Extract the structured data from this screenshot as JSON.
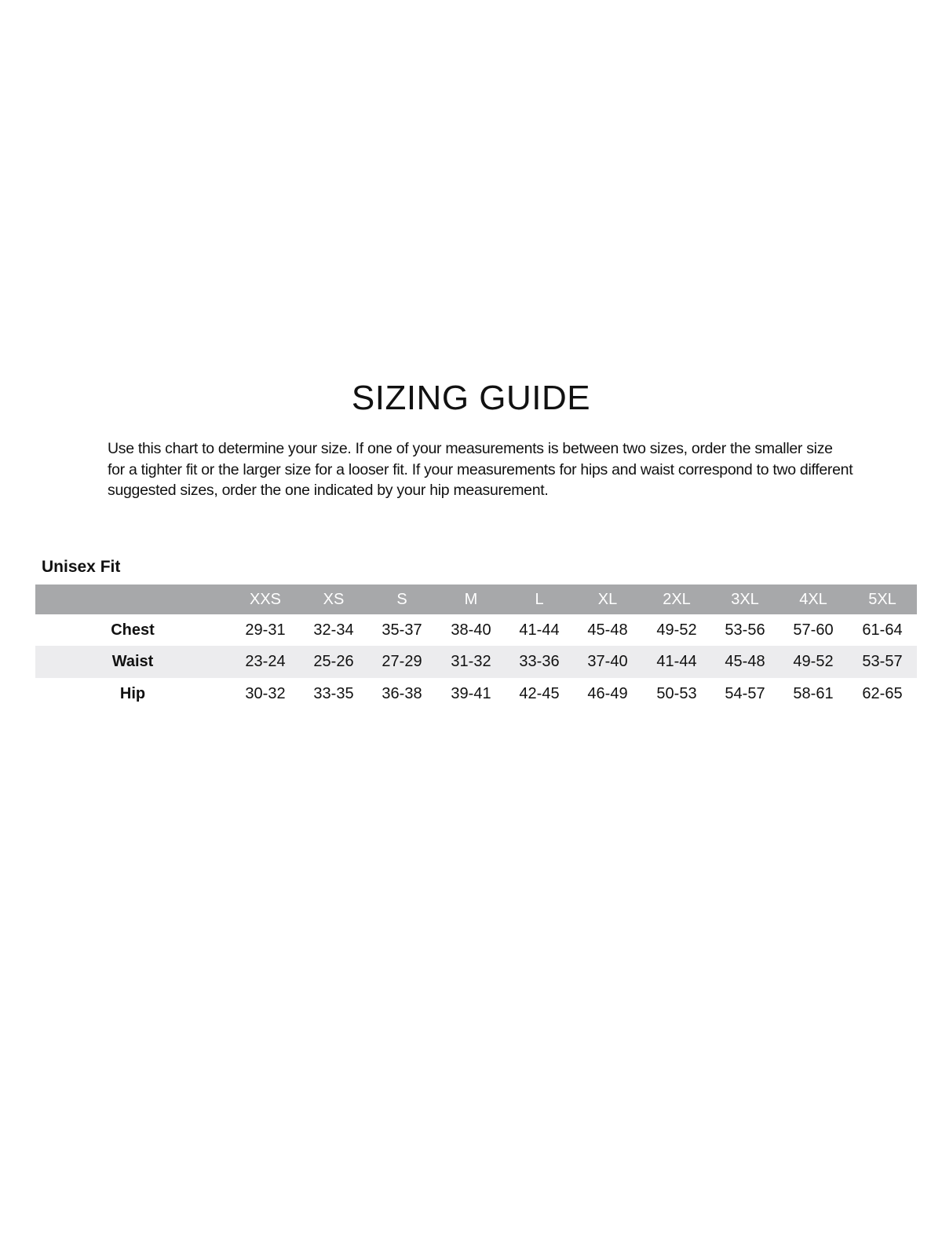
{
  "title": "SIZING GUIDE",
  "intro": "Use this chart to determine your size. If one of your measurements is between two sizes, order the smaller size for a tighter fit or the larger size for a looser fit. If your measurements for hips and waist correspond to two different suggested sizes, order the one indicated by your hip measurement.",
  "fit_label": "Unisex Fit",
  "colors": {
    "header_bg": "#a7a8aa",
    "band_bg": "#ececee"
  },
  "table": {
    "sizes": [
      "XXS",
      "XS",
      "S",
      "M",
      "L",
      "XL",
      "2XL",
      "3XL",
      "4XL",
      "5XL"
    ],
    "rows": [
      {
        "label": "Chest",
        "values": [
          "29-31",
          "32-34",
          "35-37",
          "38-40",
          "41-44",
          "45-48",
          "49-52",
          "53-56",
          "57-60",
          "61-64"
        ]
      },
      {
        "label": "Waist",
        "values": [
          "23-24",
          "25-26",
          "27-29",
          "31-32",
          "33-36",
          "37-40",
          "41-44",
          "45-48",
          "49-52",
          "53-57"
        ]
      },
      {
        "label": "Hip",
        "values": [
          "30-32",
          "33-35",
          "36-38",
          "39-41",
          "42-45",
          "46-49",
          "50-53",
          "54-57",
          "58-61",
          "62-65"
        ]
      }
    ]
  }
}
